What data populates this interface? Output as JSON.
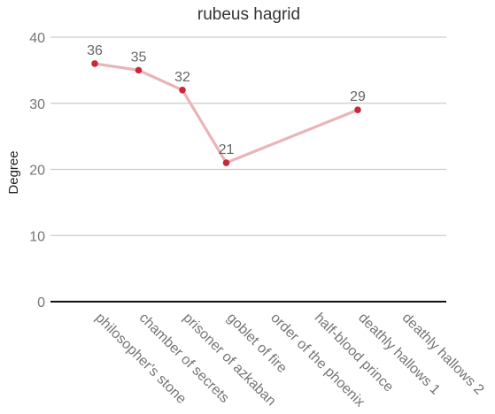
{
  "chart_data": {
    "type": "line",
    "title": "rubeus hagrid",
    "xlabel": "",
    "ylabel": "Degree",
    "ylim": [
      0,
      40
    ],
    "yticks": [
      0,
      10,
      20,
      30,
      40
    ],
    "grid": true,
    "categories": [
      "philosopher's stone",
      "chamber of secrets",
      "prisoner of azkaban",
      "goblet of fire",
      "order of the phoenix",
      "half-blood prince",
      "deathly hallows 1",
      "deathly hallows 2"
    ],
    "series": [
      {
        "values": [
          36,
          35,
          32,
          21,
          null,
          null,
          29,
          null
        ],
        "line_color": "#e8b4b8",
        "marker_color": "#c8283c"
      }
    ]
  }
}
